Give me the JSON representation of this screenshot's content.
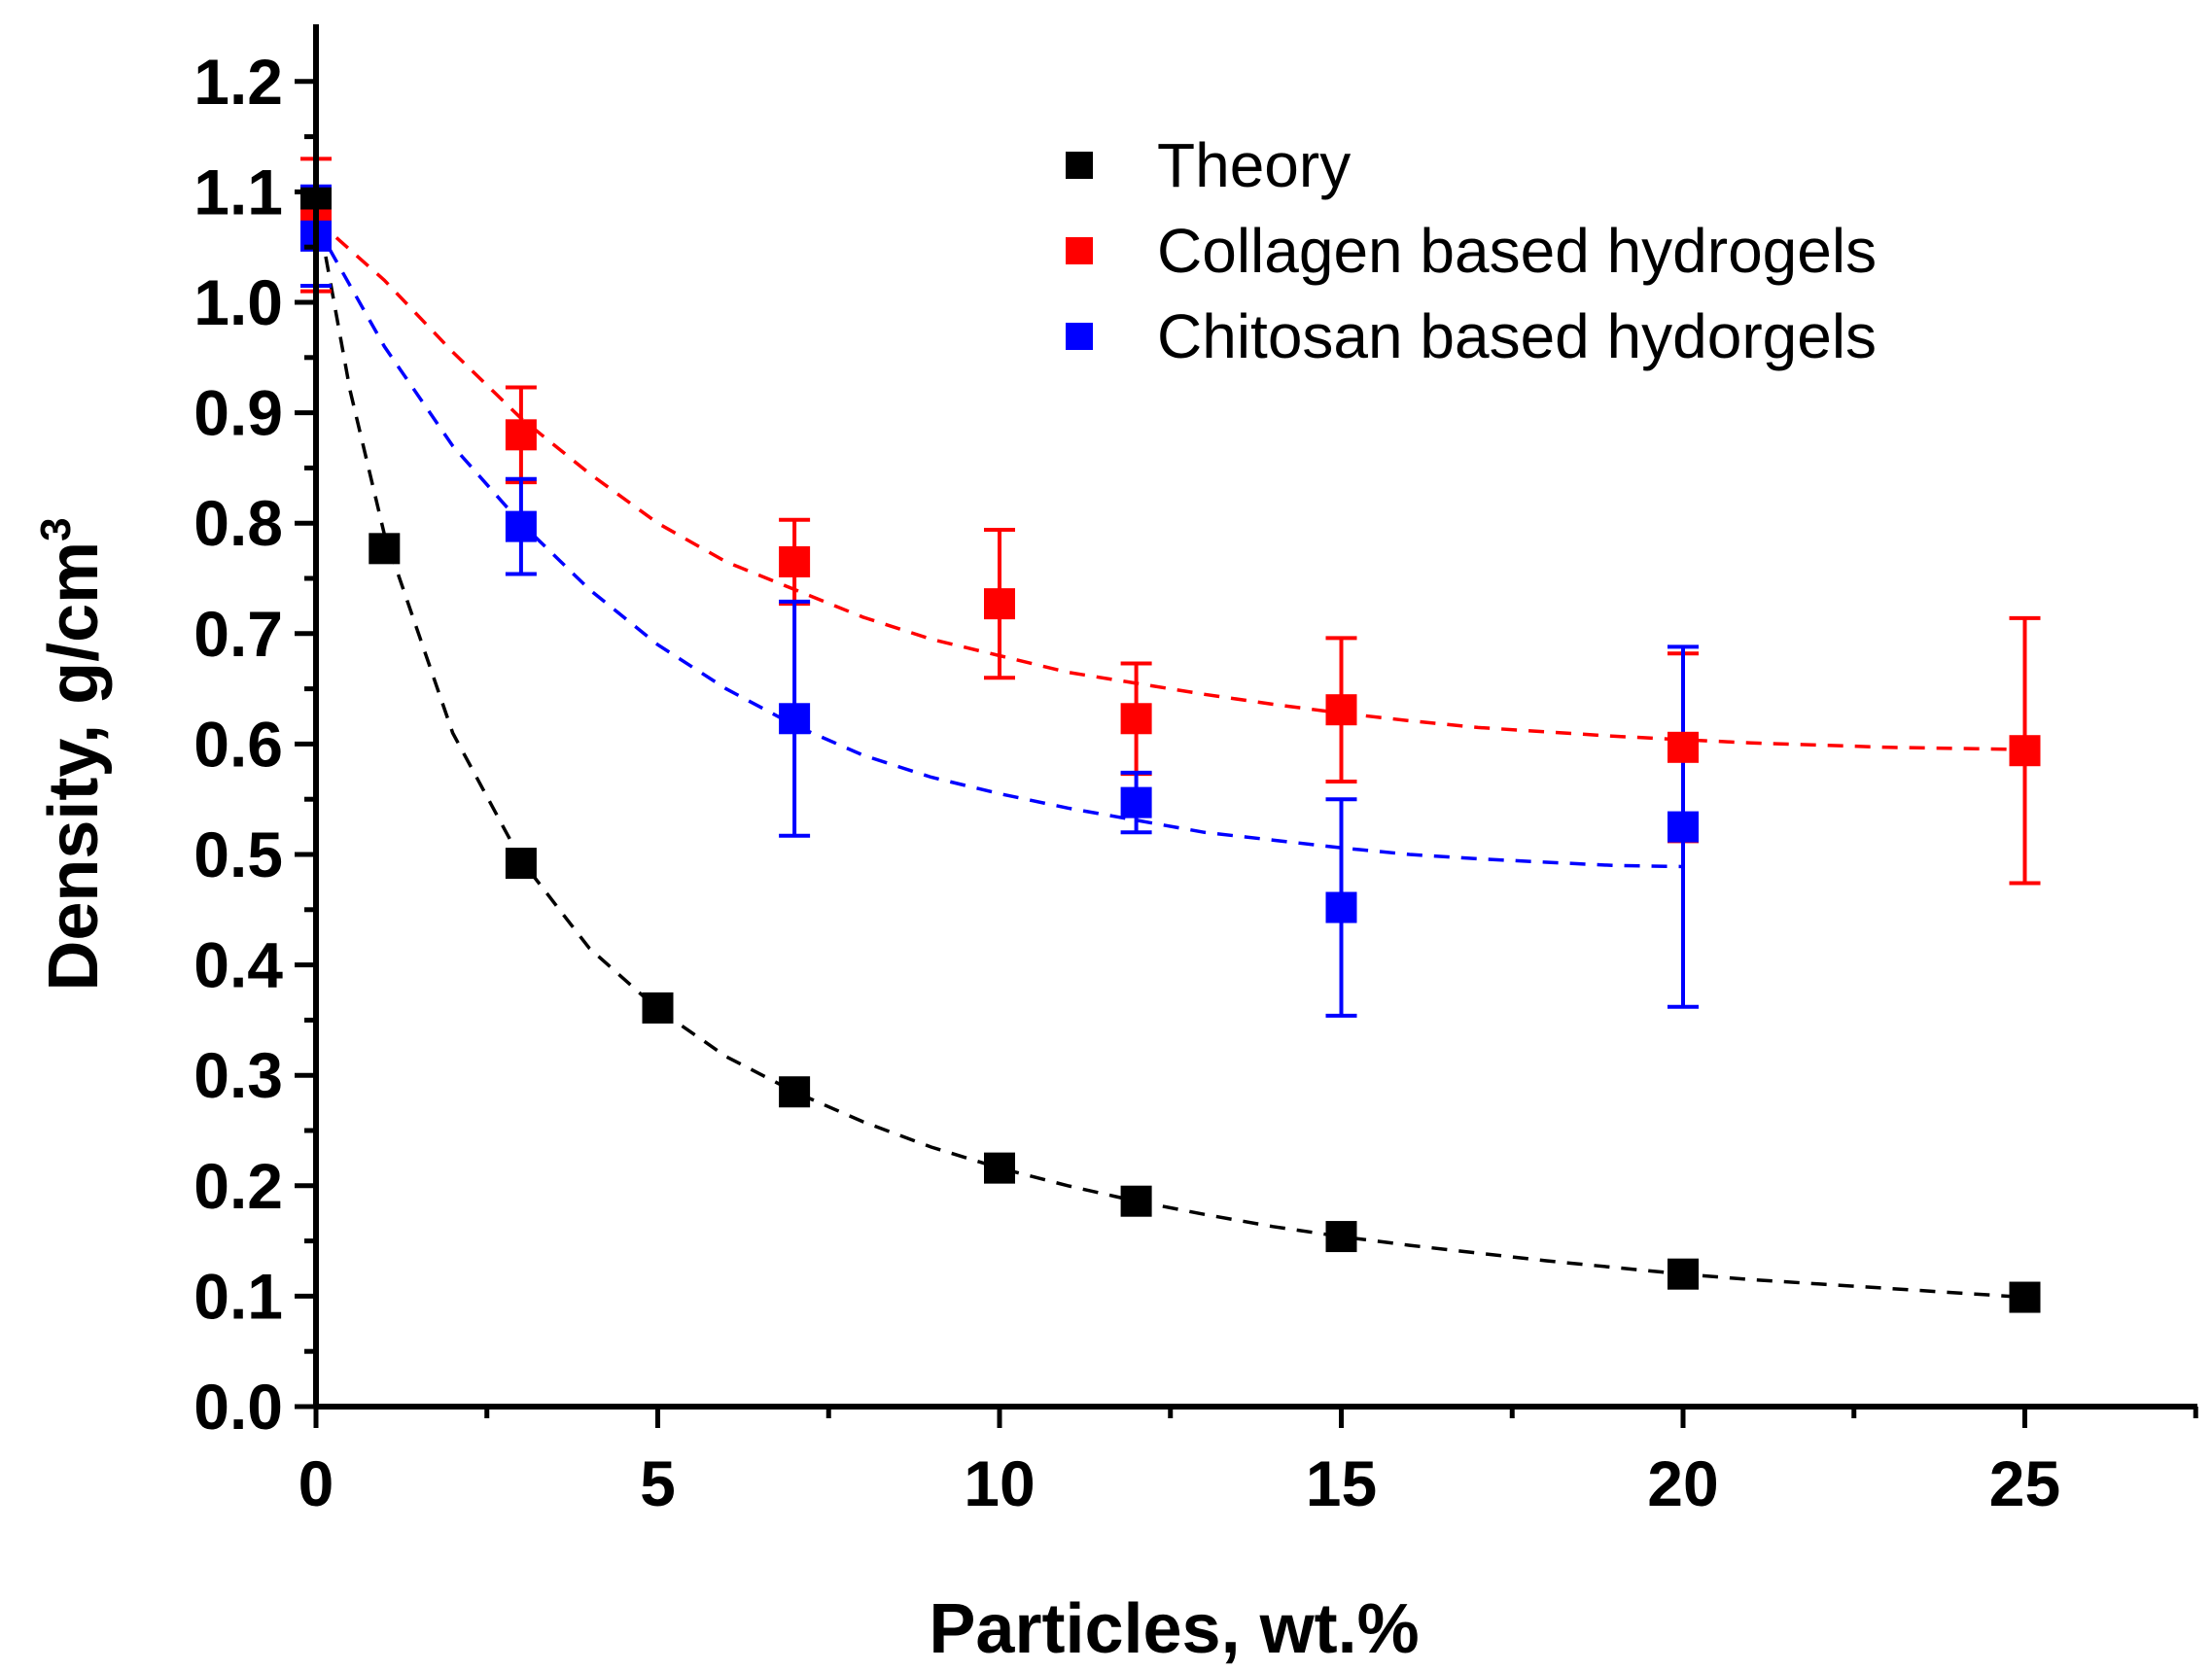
{
  "chart_data": {
    "type": "scatter",
    "title": "",
    "xlabel": "Particles, wt.%",
    "ylabel": "Density, g/cm",
    "ylabel_superscript": "3",
    "xlim": [
      0,
      27.5
    ],
    "ylim": [
      0,
      1.25
    ],
    "x_ticks": [
      0,
      5,
      10,
      15,
      20,
      25
    ],
    "x_tick_labels": [
      "0",
      "5",
      "10",
      "15",
      "20",
      "25"
    ],
    "y_ticks": [
      0.0,
      0.1,
      0.2,
      0.3,
      0.4,
      0.5,
      0.6,
      0.7,
      0.8,
      0.9,
      1.0,
      1.1,
      1.2
    ],
    "y_tick_labels": [
      "0.0",
      "0.1",
      "0.2",
      "0.3",
      "0.4",
      "0.5",
      "0.6",
      "0.7",
      "0.8",
      "0.9",
      "1.0",
      "1.1",
      "1.2"
    ],
    "grid": false,
    "legend_position": "top-right",
    "series": [
      {
        "name": "Theory",
        "color": "#000000",
        "x": [
          0,
          1,
          3,
          5,
          7,
          10,
          12,
          15,
          20,
          25
        ],
        "y": [
          1.09,
          0.777,
          0.492,
          0.361,
          0.285,
          0.216,
          0.186,
          0.154,
          0.12,
          0.099
        ],
        "err": null
      },
      {
        "name": "Collagen based hydrogels",
        "color": "#ff0000",
        "x": [
          0,
          3,
          7,
          10,
          12,
          15,
          20,
          25
        ],
        "y": [
          1.07,
          0.88,
          0.765,
          0.727,
          0.623,
          0.631,
          0.597,
          0.594
        ],
        "err": [
          0.06,
          0.043,
          0.038,
          0.067,
          0.05,
          0.065,
          0.085,
          0.12
        ]
      },
      {
        "name": "Chitosan based hydorgels",
        "color": "#0000ff",
        "x": [
          0,
          3,
          7,
          12,
          15,
          20
        ],
        "y": [
          1.06,
          0.797,
          0.623,
          0.547,
          0.452,
          0.525
        ],
        "err": [
          0.045,
          0.043,
          0.106,
          0.027,
          0.098,
          0.163
        ]
      }
    ],
    "fits": [
      {
        "series": "Theory",
        "color": "#000000",
        "x": [
          0,
          0.5,
          1,
          2,
          3,
          4,
          5,
          6,
          7,
          8,
          9,
          10,
          11,
          12,
          13,
          14,
          15,
          16,
          17,
          18,
          19,
          20,
          21,
          22,
          23,
          24,
          25
        ],
        "y": [
          1.09,
          0.92,
          0.79,
          0.61,
          0.495,
          0.415,
          0.36,
          0.317,
          0.285,
          0.258,
          0.235,
          0.216,
          0.2,
          0.186,
          0.174,
          0.163,
          0.154,
          0.146,
          0.139,
          0.132,
          0.126,
          0.12,
          0.115,
          0.111,
          0.107,
          0.103,
          0.099
        ]
      },
      {
        "series": "Collagen based hydrogels",
        "color": "#ff0000",
        "x": [
          0,
          1,
          2,
          3,
          4,
          5,
          6,
          7,
          8,
          9,
          10,
          11,
          12,
          13,
          14,
          15,
          16,
          17,
          18,
          19,
          20,
          21,
          22,
          23,
          24,
          25
        ],
        "y": [
          1.075,
          1.02,
          0.955,
          0.895,
          0.845,
          0.8,
          0.765,
          0.74,
          0.715,
          0.695,
          0.68,
          0.665,
          0.655,
          0.645,
          0.636,
          0.628,
          0.621,
          0.615,
          0.611,
          0.607,
          0.604,
          0.601,
          0.599,
          0.597,
          0.596,
          0.595
        ]
      },
      {
        "series": "Chitosan based hydorgels",
        "color": "#0000ff",
        "x": [
          0,
          1,
          2,
          3,
          4,
          5,
          6,
          7,
          8,
          9,
          10,
          11,
          12,
          13,
          14,
          15,
          16,
          17,
          18,
          19,
          20
        ],
        "y": [
          1.07,
          0.96,
          0.87,
          0.8,
          0.74,
          0.69,
          0.65,
          0.617,
          0.59,
          0.57,
          0.555,
          0.542,
          0.531,
          0.52,
          0.513,
          0.506,
          0.5,
          0.496,
          0.493,
          0.49,
          0.489
        ]
      }
    ]
  }
}
